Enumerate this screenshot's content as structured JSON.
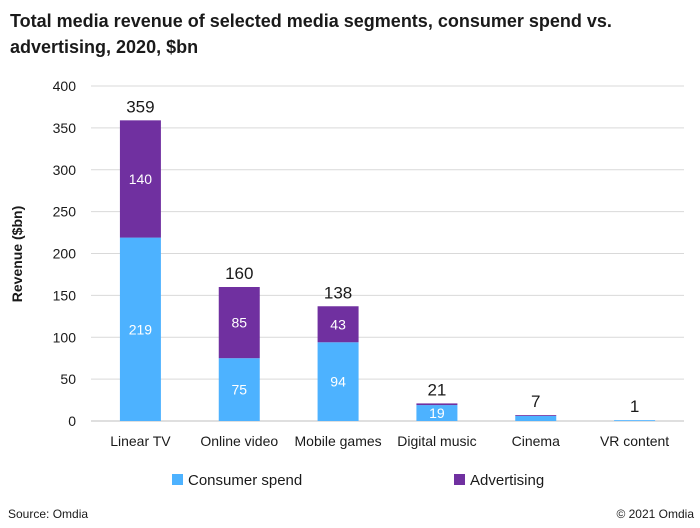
{
  "chart_data": {
    "type": "bar",
    "stacked": true,
    "title": "Total media revenue of selected media segments, consumer spend vs. advertising, 2020, $bn",
    "xlabel": "",
    "ylabel": "Revenue ($bn)",
    "ylim": [
      0,
      400
    ],
    "yticks": [
      0,
      50,
      100,
      150,
      200,
      250,
      300,
      350,
      400
    ],
    "grid": true,
    "legend_position": "bottom",
    "categories": [
      "Linear TV",
      "Online video",
      "Mobile games",
      "Digital music",
      "Cinema",
      "VR content"
    ],
    "series": [
      {
        "name": "Consumer spend",
        "color": "#4db2ff",
        "values": [
          219,
          75,
          94,
          19,
          6,
          1
        ],
        "labels": [
          "219",
          "75",
          "94",
          "19",
          "",
          ""
        ]
      },
      {
        "name": "Advertising",
        "color": "#7030a0",
        "values": [
          140,
          85,
          43,
          2,
          1,
          0
        ],
        "labels": [
          "140",
          "85",
          "43",
          "",
          "",
          ""
        ]
      }
    ],
    "totals": [
      "359",
      "160",
      "138",
      "21",
      "7",
      "1"
    ]
  },
  "footer": {
    "source": "Source: Omdia",
    "copyright": "© 2021 Omdia"
  }
}
